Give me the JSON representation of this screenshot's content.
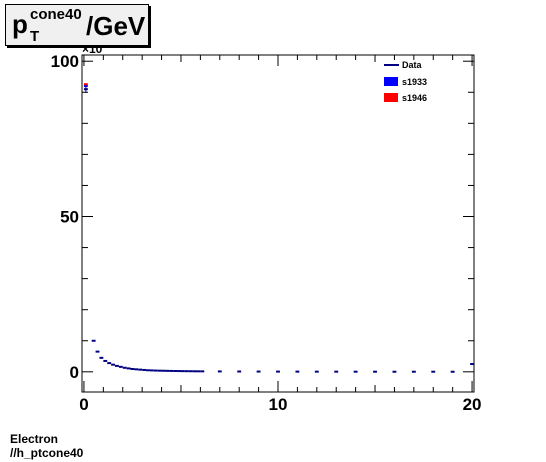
{
  "title": {
    "main": "p",
    "superscript": "cone40",
    "subscript": "T",
    "rest": "/GeV"
  },
  "footer": {
    "line1": "Electron",
    "line2": "//h_ptcone40"
  },
  "y_axis_exponent": "×10",
  "colors": {
    "data": "#000080",
    "s1933": "#0000ff",
    "s1946": "#ff0000",
    "axis": "#000000"
  },
  "chart_data": {
    "type": "bar",
    "xlim": [
      -0.1,
      20.1
    ],
    "ylim": [
      -6.5,
      102
    ],
    "x_ticks": [
      0,
      10,
      20
    ],
    "x_tick_labels": [
      "0",
      "10",
      "20"
    ],
    "y_ticks": [
      0,
      50,
      100
    ],
    "y_tick_labels": [
      "0",
      "50",
      "100"
    ],
    "bin_width": 0.2,
    "legend": [
      {
        "name": "Data",
        "style": "line"
      },
      {
        "name": "s1933",
        "style": "box"
      },
      {
        "name": "s1946",
        "style": "box"
      }
    ],
    "series": [
      {
        "name": "Data",
        "bins": [
          [
            0.1,
            91.0
          ],
          [
            0.5,
            10.0
          ],
          [
            0.7,
            6.5
          ],
          [
            0.9,
            4.5
          ],
          [
            1.1,
            3.5
          ],
          [
            1.3,
            2.8
          ],
          [
            1.5,
            2.3
          ],
          [
            1.7,
            1.9
          ],
          [
            1.9,
            1.6
          ],
          [
            2.1,
            1.3
          ],
          [
            2.3,
            1.1
          ],
          [
            2.5,
            0.9
          ],
          [
            2.7,
            0.8
          ],
          [
            2.9,
            0.7
          ],
          [
            3.1,
            0.6
          ],
          [
            3.3,
            0.5
          ],
          [
            3.5,
            0.45
          ],
          [
            3.7,
            0.4
          ],
          [
            3.9,
            0.37
          ],
          [
            4.1,
            0.34
          ],
          [
            4.3,
            0.31
          ],
          [
            4.5,
            0.28
          ],
          [
            4.7,
            0.26
          ],
          [
            4.9,
            0.24
          ],
          [
            5.1,
            0.22
          ],
          [
            5.3,
            0.2
          ],
          [
            5.5,
            0.19
          ],
          [
            5.7,
            0.17
          ],
          [
            5.9,
            0.16
          ],
          [
            6.1,
            0.15
          ],
          [
            7,
            0.12
          ],
          [
            8,
            0.1
          ],
          [
            9,
            0.08
          ],
          [
            10,
            0.07
          ],
          [
            11,
            0.06
          ],
          [
            12,
            0.05
          ],
          [
            13,
            0.05
          ],
          [
            14,
            0.04
          ],
          [
            15,
            0.04
          ],
          [
            16,
            0.03
          ],
          [
            17,
            0.03
          ],
          [
            18,
            0.03
          ],
          [
            19,
            0.02
          ],
          [
            20,
            2.5
          ]
        ]
      },
      {
        "name": "s1933",
        "bins": [
          [
            0.1,
            92.0
          ]
        ]
      },
      {
        "name": "s1946",
        "bins": [
          [
            0.1,
            92.6
          ]
        ]
      }
    ]
  }
}
